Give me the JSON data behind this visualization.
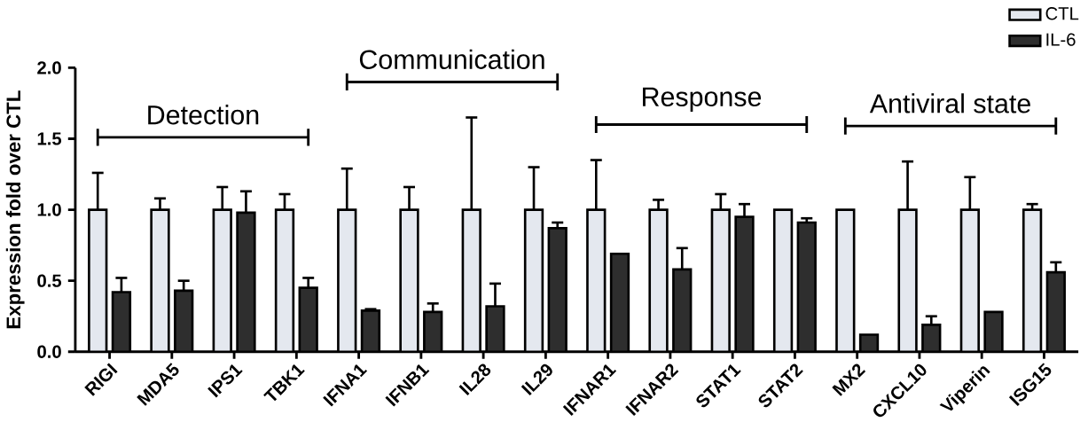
{
  "chart_data": {
    "type": "bar",
    "ylabel": "Expression fold over CTL",
    "categories": [
      "RIGI",
      "MDA5",
      "IPS1",
      "TBK1",
      "IFNA1",
      "IFNB1",
      "IL28",
      "IL29",
      "IFNAR1",
      "IFNAR2",
      "STAT1",
      "STAT2",
      "MX2",
      "CXCL10",
      "Viperin",
      "ISG15"
    ],
    "series": [
      {
        "name": "CTL",
        "color": "#e4e8ef",
        "values": [
          1.0,
          1.0,
          1.0,
          1.0,
          1.0,
          1.0,
          1.0,
          1.0,
          1.0,
          1.0,
          1.0,
          1.0,
          1.0,
          1.0,
          1.0,
          1.0
        ],
        "errors": [
          [
            1.0,
            1.26
          ],
          [
            1.0,
            1.08
          ],
          [
            1.0,
            1.16
          ],
          [
            1.0,
            1.11
          ],
          [
            1.0,
            1.29
          ],
          [
            1.0,
            1.16
          ],
          [
            1.0,
            1.65
          ],
          [
            1.0,
            1.3
          ],
          [
            1.0,
            1.35
          ],
          [
            1.0,
            1.07
          ],
          [
            1.0,
            1.11
          ],
          null,
          null,
          [
            1.0,
            1.34
          ],
          [
            1.0,
            1.23
          ],
          [
            1.0,
            1.04
          ]
        ]
      },
      {
        "name": "IL-6",
        "color": "#2e2e2e",
        "values": [
          0.42,
          0.43,
          0.98,
          0.45,
          0.29,
          0.28,
          0.32,
          0.87,
          0.69,
          0.58,
          0.95,
          0.91,
          0.12,
          0.19,
          0.28,
          0.56
        ],
        "errors": [
          [
            0.42,
            0.52
          ],
          [
            0.43,
            0.5
          ],
          [
            0.98,
            1.13
          ],
          [
            0.45,
            0.52
          ],
          [
            0.29,
            0.3
          ],
          [
            0.28,
            0.34
          ],
          [
            0.32,
            0.48
          ],
          [
            0.87,
            0.91
          ],
          null,
          [
            0.58,
            0.73
          ],
          [
            0.95,
            1.04
          ],
          [
            0.91,
            0.94
          ],
          null,
          [
            0.19,
            0.25
          ],
          null,
          [
            0.56,
            0.63
          ]
        ]
      }
    ],
    "ylim": [
      0,
      2.0
    ],
    "yticks": [
      {
        "value": 0,
        "label": "0.0"
      },
      {
        "value": 0.5,
        "label": "0.5"
      },
      {
        "value": 1.0,
        "label": "1.0"
      },
      {
        "value": 1.5,
        "label": "1.5"
      },
      {
        "value": 2.0,
        "label": "2.0"
      }
    ],
    "legend": "top right",
    "annotations": [
      "Detection",
      "Communication",
      "Response",
      "Antiviral state"
    ]
  }
}
